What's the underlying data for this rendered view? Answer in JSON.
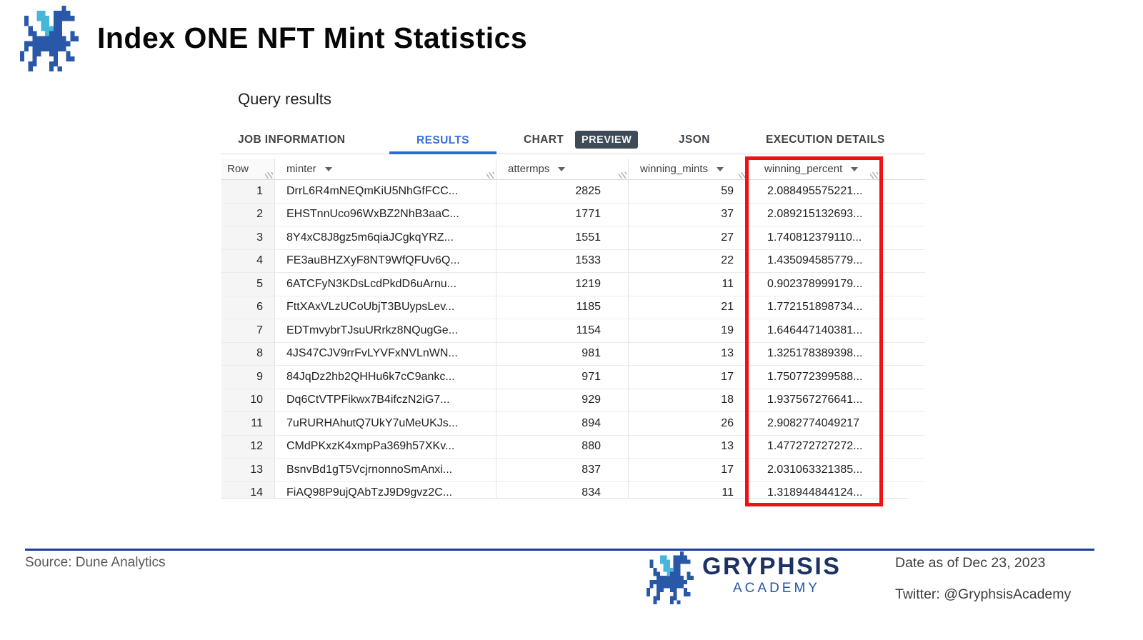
{
  "header": {
    "title": "Index ONE NFT Mint Statistics"
  },
  "panel": {
    "heading": "Query results",
    "tabs": [
      {
        "label": "JOB INFORMATION",
        "active": false
      },
      {
        "label": "RESULTS",
        "active": true
      },
      {
        "label": "CHART",
        "active": false
      },
      {
        "label": "PREVIEW",
        "badge": true
      },
      {
        "label": "JSON",
        "active": false
      },
      {
        "label": "EXECUTION DETAILS",
        "active": false
      }
    ],
    "table": {
      "columns": [
        "Row",
        "minter",
        "attermps",
        "winning_mints",
        "winning_percent"
      ],
      "sortable_columns": [
        "minter",
        "attermps",
        "winning_mints",
        "winning_percent"
      ],
      "highlighted_column": "winning_percent",
      "rows": [
        [
          "1",
          "DrrL6R4mNEQmKiU5NhGfFCC...",
          "2825",
          "59",
          "2.088495575221..."
        ],
        [
          "2",
          "EHSTnnUco96WxBZ2NhB3aaC...",
          "1771",
          "37",
          "2.089215132693..."
        ],
        [
          "3",
          "8Y4xC8J8gz5m6qiaJCgkqYRZ...",
          "1551",
          "27",
          "1.740812379110..."
        ],
        [
          "4",
          "FE3auBHZXyF8NT9WfQFUv6Q...",
          "1533",
          "22",
          "1.435094585779..."
        ],
        [
          "5",
          "6ATCFyN3KDsLcdPkdD6uArnu...",
          "1219",
          "11",
          "0.902378999179..."
        ],
        [
          "6",
          "FttXAxVLzUCoUbjT3BUypsLev...",
          "1185",
          "21",
          "1.772151898734..."
        ],
        [
          "7",
          "EDTmvybrTJsuURrkz8NQugGe...",
          "1154",
          "19",
          "1.646447140381..."
        ],
        [
          "8",
          "4JS47CJV9rrFvLYVFxNVLnWN...",
          "981",
          "13",
          "1.325178389398..."
        ],
        [
          "9",
          "84JqDz2hb2QHHu6k7cC9ankc...",
          "971",
          "17",
          "1.750772399588..."
        ],
        [
          "10",
          "Dq6CtVTPFikwx7B4ifczN2iG7...",
          "929",
          "18",
          "1.937567276641..."
        ],
        [
          "11",
          "7uRURHAhutQ7UkY7uMeUKJs...",
          "894",
          "26",
          "2.9082774049217"
        ],
        [
          "12",
          "CMdPKxzK4xmpPa369h57XKv...",
          "880",
          "13",
          "1.477272727272..."
        ],
        [
          "13",
          "BsnvBd1gT5VcjrnonnoSmAnxi...",
          "837",
          "17",
          "2.031063321385..."
        ],
        [
          "14",
          "FiAQ98P9ujQAbTzJ9D9gvz2C...",
          "834",
          "11",
          "1.318944844124..."
        ]
      ]
    }
  },
  "footer": {
    "source": "Source: Dune Analytics",
    "brand": "GRYPHSIS",
    "brand_sub": "ACADEMY",
    "date": "Date as of Dec 23, 2023",
    "twitter": "Twitter: @GryphsisAcademy"
  },
  "colors": {
    "accent_blue_tab": "#3a6fd8",
    "tab_underline": "#2e6ad3",
    "preview_badge_bg": "#3e4a56",
    "highlight_red": "#ee1212",
    "footer_rule_blue": "#1c3ba2",
    "brand_navy": "#1c3164",
    "brand_blue": "#2357a7",
    "logo_navy": "#2a58a8",
    "logo_teal": "#46b7d8"
  },
  "icons": [
    "gryphsis-dragon-logo",
    "sort-arrow-icon",
    "column-resize-handle"
  ]
}
